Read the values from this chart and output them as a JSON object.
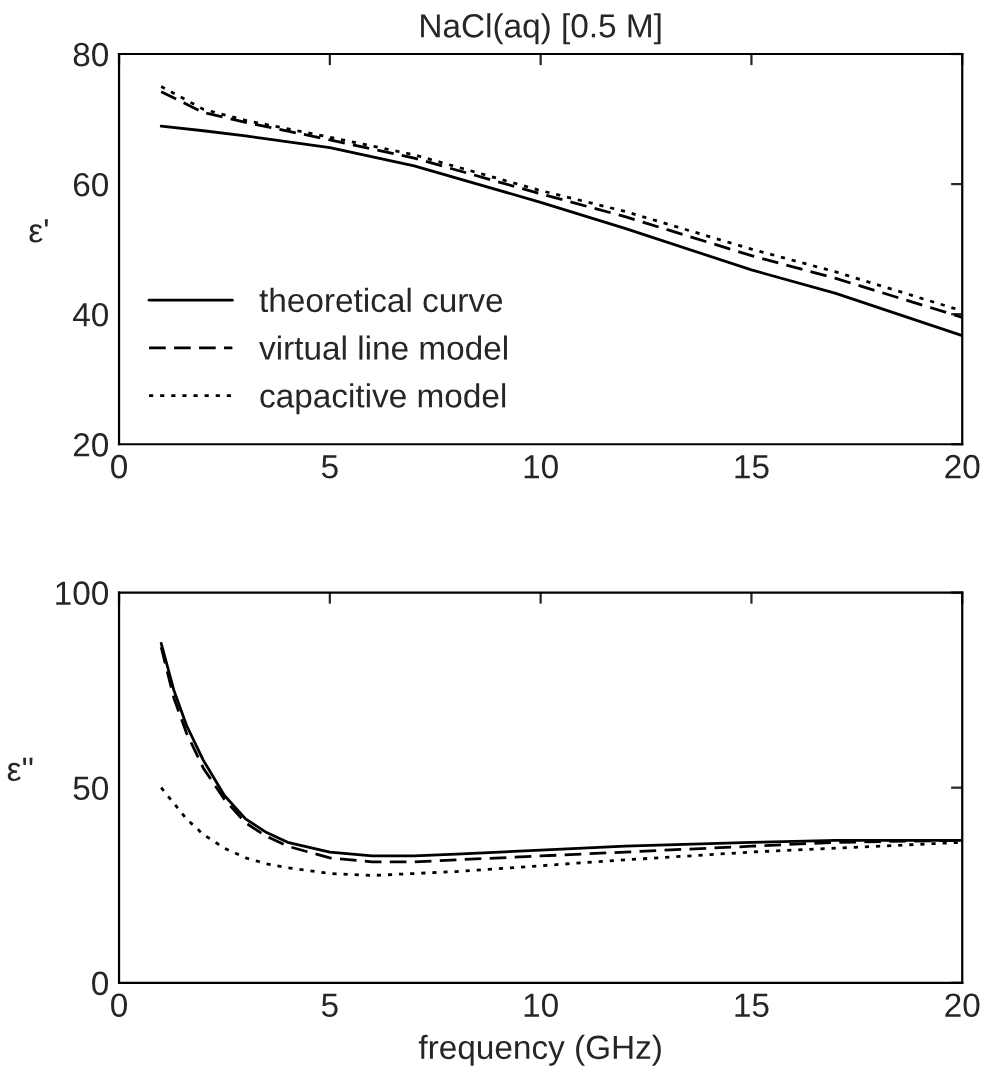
{
  "chart_data": [
    {
      "type": "line",
      "title": "NaCl(aq) [0.5 M]",
      "ylabel": "ε'",
      "xlim": [
        0,
        20
      ],
      "ylim": [
        20,
        80
      ],
      "xticks": [
        0,
        5,
        10,
        15,
        20
      ],
      "yticks": [
        20,
        40,
        60,
        80
      ],
      "grid": false,
      "legend": "lower left",
      "x": [
        1,
        2,
        3,
        5,
        7,
        10,
        12,
        15,
        17,
        20
      ],
      "series": [
        {
          "name": "theoretical curve",
          "color": "#000000",
          "line_style": "solid",
          "values": [
            68.9,
            68.2,
            67.4,
            65.6,
            62.8,
            57.2,
            53.2,
            46.8,
            43.2,
            36.7
          ]
        },
        {
          "name": "virtual line model",
          "color": "#000000",
          "line_style": "dashed",
          "values": [
            74.2,
            71.0,
            69.5,
            66.8,
            64.0,
            58.5,
            55.0,
            49.0,
            45.5,
            39.5
          ]
        },
        {
          "name": "capacitive model",
          "color": "#000000",
          "line_style": "dotted",
          "values": [
            75.0,
            71.5,
            69.8,
            67.2,
            64.5,
            59.0,
            55.8,
            50.0,
            46.5,
            40.5
          ]
        }
      ]
    },
    {
      "type": "line",
      "xlabel": "frequency (GHz)",
      "ylabel": "ε''",
      "xlim": [
        0,
        20
      ],
      "ylim": [
        0,
        100
      ],
      "xticks": [
        0,
        5,
        10,
        15,
        20
      ],
      "yticks": [
        0,
        50,
        100
      ],
      "grid": false,
      "legend": false,
      "x": [
        1,
        1.3,
        1.6,
        2,
        2.5,
        3,
        3.5,
        4,
        5,
        6,
        7,
        8,
        10,
        12,
        15,
        17,
        20
      ],
      "series": [
        {
          "color": "#000000",
          "line_style": "solid",
          "values": [
            87,
            75,
            66,
            57,
            48,
            42,
            38.5,
            36,
            33.5,
            32.5,
            32.5,
            33,
            34,
            35,
            36,
            36.5,
            36.5
          ]
        },
        {
          "color": "#000000",
          "line_style": "dashed",
          "values": [
            86,
            73,
            64,
            55,
            47,
            41,
            37.5,
            35,
            32,
            31,
            31,
            31.5,
            32.5,
            33.5,
            35,
            36,
            36.5
          ]
        },
        {
          "color": "#000000",
          "line_style": "dotted",
          "values": [
            50,
            46,
            42,
            38,
            34.5,
            32,
            30.5,
            29.5,
            28,
            27.5,
            28,
            28.5,
            30,
            31.5,
            33.5,
            34.5,
            36
          ]
        }
      ]
    }
  ]
}
